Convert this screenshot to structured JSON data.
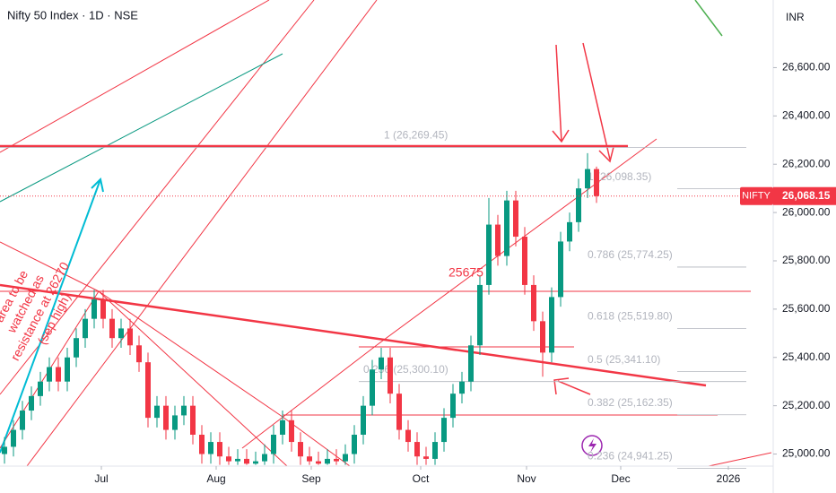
{
  "chart_data": {
    "type": "candlestick",
    "title": "Nifty 50 Index · 1D · NSE",
    "currency": "INR",
    "up_color": "#089981",
    "down_color": "#f23645",
    "x": [
      0,
      1,
      2,
      3,
      4,
      5,
      6,
      7,
      8,
      9,
      10,
      11,
      12,
      13,
      14,
      15,
      16,
      17,
      18,
      19,
      20,
      21,
      22,
      23,
      24,
      25,
      26,
      27,
      28,
      29,
      30,
      31,
      32,
      33,
      34,
      35,
      36,
      37,
      38,
      39,
      40,
      41,
      42,
      43,
      44,
      45,
      46,
      47,
      48,
      49,
      50,
      51,
      52,
      53,
      54,
      55,
      56,
      57,
      58,
      59,
      60,
      61,
      62,
      63,
      64,
      65,
      66
    ],
    "open": [
      25000,
      25030,
      25100,
      25180,
      25240,
      25300,
      25360,
      25300,
      25400,
      25480,
      25560,
      25640,
      25560,
      25480,
      25520,
      25450,
      25380,
      25150,
      25200,
      25100,
      25160,
      25200,
      25080,
      25000,
      25050,
      24990,
      24970,
      24980,
      24960,
      24970,
      25000,
      25080,
      25140,
      25050,
      24990,
      24970,
      24960,
      24980,
      24970,
      25000,
      25080,
      25200,
      25350,
      25400,
      25250,
      25100,
      25050,
      24990,
      24980,
      25050,
      25150,
      25250,
      25300,
      25450,
      25700,
      25950,
      25820,
      26050,
      25900,
      25700,
      25550,
      25420,
      25650,
      25880,
      25960,
      26100,
      26180
    ],
    "high": [
      25070,
      25140,
      25220,
      25280,
      25340,
      25400,
      25400,
      25440,
      25520,
      25600,
      25680,
      25680,
      25600,
      25560,
      25560,
      25490,
      25420,
      25240,
      25240,
      25200,
      25240,
      25240,
      25120,
      25090,
      25090,
      25030,
      25020,
      25020,
      25010,
      25040,
      25120,
      25180,
      25180,
      25090,
      25030,
      25010,
      25020,
      25020,
      25040,
      25120,
      25240,
      25390,
      25440,
      25440,
      25290,
      25140,
      25090,
      25030,
      25090,
      25190,
      25290,
      25340,
      25490,
      25740,
      26060,
      25990,
      26090,
      26090,
      25940,
      25740,
      25590,
      25690,
      25920,
      26000,
      26140,
      26246,
      26190
    ],
    "low": [
      24960,
      24990,
      25060,
      25140,
      25200,
      25260,
      25260,
      25260,
      25360,
      25440,
      25520,
      25520,
      25440,
      25440,
      25410,
      25340,
      25110,
      25110,
      25060,
      25060,
      25120,
      25040,
      24960,
      24960,
      24955,
      24955,
      24955,
      24955,
      24955,
      24955,
      24960,
      25040,
      25010,
      24955,
      24955,
      24955,
      24955,
      24955,
      24955,
      24960,
      25040,
      25160,
      25310,
      25210,
      25060,
      25010,
      24955,
      24955,
      24955,
      25010,
      25110,
      25210,
      25260,
      25410,
      25660,
      25780,
      25780,
      25860,
      25660,
      25510,
      25320,
      25380,
      25610,
      25840,
      25920,
      26060,
      26040
    ],
    "close": [
      25030,
      25100,
      25180,
      25240,
      25300,
      25360,
      25300,
      25400,
      25480,
      25560,
      25640,
      25560,
      25480,
      25520,
      25450,
      25380,
      25150,
      25200,
      25100,
      25160,
      25200,
      25080,
      25000,
      25050,
      24990,
      24970,
      24980,
      24960,
      24970,
      25000,
      25080,
      25140,
      25050,
      24990,
      24970,
      24960,
      24980,
      24970,
      25000,
      25080,
      25200,
      25350,
      25400,
      25250,
      25100,
      25050,
      24990,
      24980,
      25050,
      25150,
      25250,
      25300,
      25450,
      25700,
      25950,
      25820,
      26050,
      25900,
      25700,
      25550,
      25420,
      25650,
      25880,
      25960,
      26100,
      26180,
      26068.15
    ],
    "xlim": [
      -0.5,
      85.7
    ],
    "xticks": [
      {
        "value": 10.8,
        "label": "Jul"
      },
      {
        "value": 23.6,
        "label": "Aug"
      },
      {
        "value": 34.2,
        "label": "Sep"
      },
      {
        "value": 46.4,
        "label": "Oct"
      },
      {
        "value": 58.2,
        "label": "Nov"
      },
      {
        "value": 68.7,
        "label": "Dec"
      },
      {
        "value": 80.7,
        "label": "2026"
      }
    ],
    "ylim": [
      24950,
      26880
    ],
    "yticks": [
      {
        "value": 25000,
        "label": "25,000.00"
      },
      {
        "value": 25200,
        "label": "25,200.00"
      },
      {
        "value": 25400,
        "label": "25,400.00"
      },
      {
        "value": 25600,
        "label": "25,600.00"
      },
      {
        "value": 25800,
        "label": "25,800.00"
      },
      {
        "value": 26000,
        "label": "26,000.00"
      },
      {
        "value": 26200,
        "label": "26,200.00"
      },
      {
        "value": 26400,
        "label": "26,400.00"
      },
      {
        "value": 26600,
        "label": "26,600.00"
      }
    ],
    "price_tag": {
      "name": "NIFTY",
      "value": 26068.15,
      "label": "26,068.15"
    },
    "fib_levels": [
      {
        "value": 26269.45,
        "label": "1 (26,269.45)"
      },
      {
        "value": 25300.1,
        "label": "0.236 (25,300.10)"
      },
      {
        "value": 26098.35,
        "label": "1 (26,098.35)"
      },
      {
        "value": 25774.25,
        "label": "0.786 (25,774.25)"
      },
      {
        "value": 25519.8,
        "label": "0.618 (25,519.80)"
      },
      {
        "value": 25341.1,
        "label": "0.5 (25,341.10)"
      },
      {
        "value": 25162.35,
        "label": "0.382 (25,162.35)"
      },
      {
        "value": 24941.25,
        "label": "0.236 (24,941.25)"
      }
    ],
    "annotations": [
      "25675",
      "area to be",
      "watched as",
      "resistance at 26270",
      "(sep high)"
    ]
  }
}
